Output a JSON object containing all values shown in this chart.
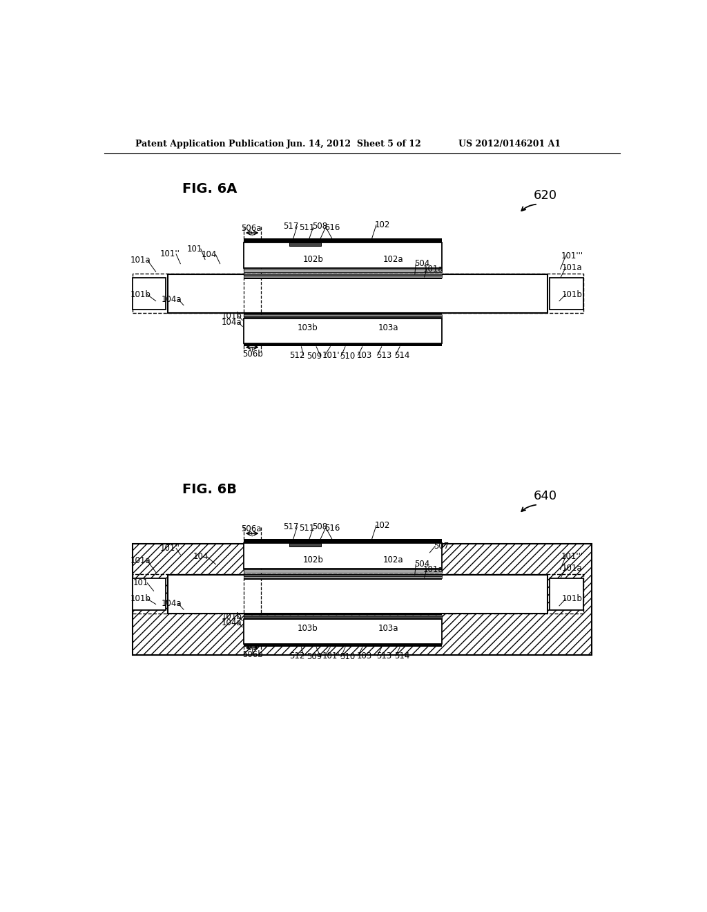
{
  "bg_color": "#ffffff",
  "header_left": "Patent Application Publication",
  "header_mid": "Jun. 14, 2012  Sheet 5 of 12",
  "header_right": "US 2012/0146201 A1",
  "fig6a_label": "FIG. 6A",
  "fig6a_ref": "620",
  "fig6b_label": "FIG. 6B",
  "fig6b_ref": "640"
}
